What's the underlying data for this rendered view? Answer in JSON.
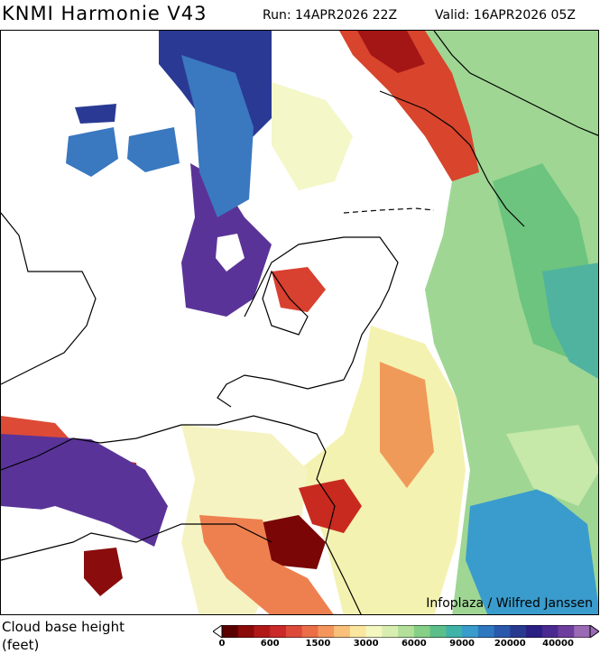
{
  "header": {
    "title": "KNMI Harmonie V43",
    "run": "Run: 14APR2026 22Z",
    "valid": "Valid: 16APR2026 05Z"
  },
  "map": {
    "credit": "Infoplaza / Wilfred Janssen"
  },
  "legend": {
    "title_line1": "Cloud base height",
    "title_line2": "(feet)",
    "tick_labels": [
      "0",
      "600",
      "1500",
      "3000",
      "6000",
      "9000",
      "20000",
      "40000"
    ],
    "colors": [
      "#5a0000",
      "#8b0a0a",
      "#b01818",
      "#cc2a2a",
      "#dd4a3a",
      "#ea6e48",
      "#f4965c",
      "#f8c07a",
      "#fbe6a0",
      "#f4f7c0",
      "#d8eeb0",
      "#b2e09a",
      "#86cf86",
      "#5cbf8a",
      "#40b3a8",
      "#3a9ccc",
      "#2e78c0",
      "#2a58ac",
      "#283a90",
      "#2a1f84",
      "#4a2a90",
      "#6e3e9e",
      "#9a6ab4"
    ]
  }
}
